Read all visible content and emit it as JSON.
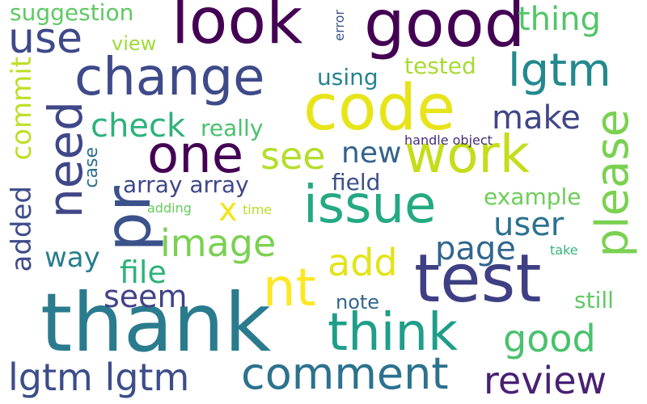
{
  "words": [
    {
      "text": "thank",
      "color": "#2a7b8e"
    },
    {
      "text": "look",
      "color": "#440154"
    },
    {
      "text": "good",
      "color": "#440154"
    },
    {
      "text": "change",
      "color": "#3e4a89"
    },
    {
      "text": "code",
      "color": "#e7e419"
    },
    {
      "text": "test",
      "color": "#3f3f84"
    },
    {
      "text": "one",
      "color": "#440154"
    },
    {
      "text": "work",
      "color": "#c5dd1a"
    },
    {
      "text": "issue",
      "color": "#23a983"
    },
    {
      "text": "think",
      "color": "#1f9e89"
    },
    {
      "text": "comment",
      "color": "#2c728e"
    },
    {
      "text": "lgtm lgtm",
      "color": "#3d4d8a"
    },
    {
      "text": "review",
      "color": "#482173"
    },
    {
      "text": "lgtm",
      "color": "#23898e"
    },
    {
      "text": "use",
      "color": "#3e4989"
    },
    {
      "text": "need",
      "color": "#3f4788"
    },
    {
      "text": "pr",
      "color": "#3b528b"
    },
    {
      "text": "please",
      "color": "#7ad151"
    },
    {
      "text": "nt",
      "color": "#fde725"
    },
    {
      "text": "image",
      "color": "#7ad151"
    },
    {
      "text": "add",
      "color": "#e2e418"
    },
    {
      "text": "see",
      "color": "#b5de2b"
    },
    {
      "text": "check",
      "color": "#2db27d"
    },
    {
      "text": "make",
      "color": "#404688"
    },
    {
      "text": "new",
      "color": "#33638d"
    },
    {
      "text": "page",
      "color": "#31668e"
    },
    {
      "text": "user",
      "color": "#2c728e"
    },
    {
      "text": "good",
      "color": "#4ac16d"
    },
    {
      "text": "thing",
      "color": "#52c569"
    },
    {
      "text": "suggestion",
      "color": "#5ec962"
    },
    {
      "text": "commit",
      "color": "#bddf26"
    },
    {
      "text": "added",
      "color": "#3e4c8a"
    },
    {
      "text": "file",
      "color": "#2eb37c"
    },
    {
      "text": "way",
      "color": "#287d8e"
    },
    {
      "text": "seem",
      "color": "#414287"
    },
    {
      "text": "x",
      "color": "#f1e51d"
    },
    {
      "text": "array array",
      "color": "#3f4788"
    },
    {
      "text": "field",
      "color": "#3c4f8a"
    },
    {
      "text": "example",
      "color": "#6ece58"
    },
    {
      "text": "really",
      "color": "#4ac16d"
    },
    {
      "text": "using",
      "color": "#25848e"
    },
    {
      "text": "tested",
      "color": "#a8db34"
    },
    {
      "text": "view",
      "color": "#a0da39"
    },
    {
      "text": "note",
      "color": "#31688e"
    },
    {
      "text": "still",
      "color": "#5ec962"
    },
    {
      "text": "case",
      "color": "#2e6f8e"
    },
    {
      "text": "handle object",
      "color": "#472d7b"
    },
    {
      "text": "error",
      "color": "#3b528b"
    },
    {
      "text": "adding",
      "color": "#67cc5c"
    },
    {
      "text": "time",
      "color": "#b8de29"
    },
    {
      "text": "take",
      "color": "#35b779"
    }
  ]
}
